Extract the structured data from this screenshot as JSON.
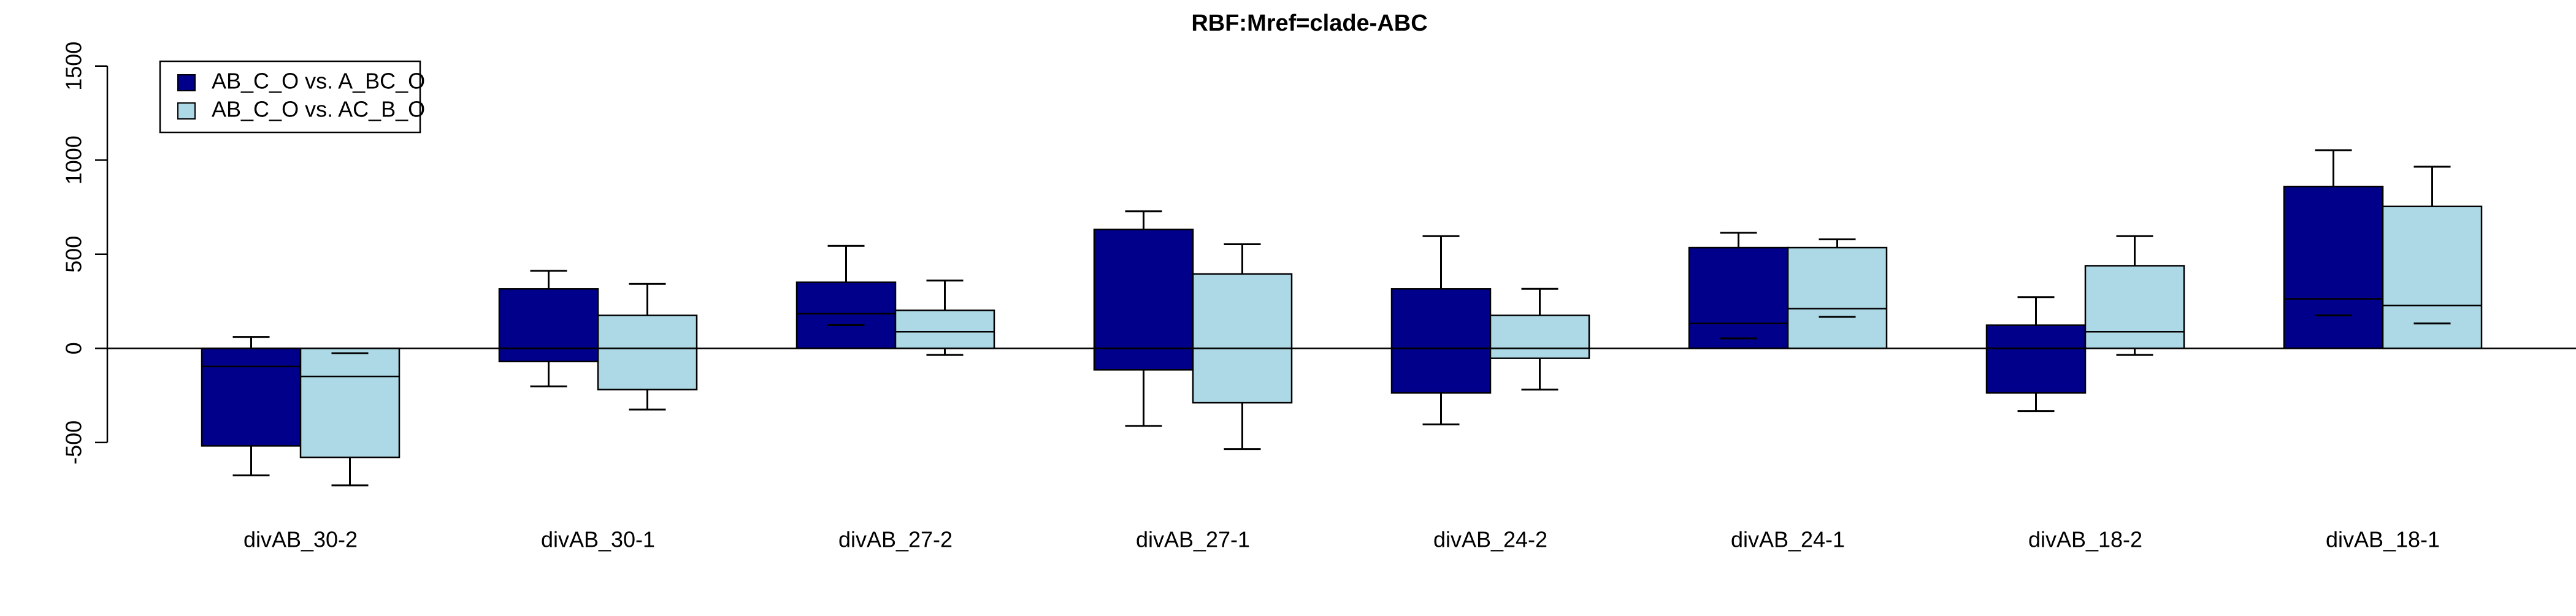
{
  "chart_data": {
    "type": "box",
    "title": "RBF:Mref=clade-ABC",
    "categories": [
      "divAB_30-2",
      "divAB_30-1",
      "divAB_27-2",
      "divAB_27-1",
      "divAB_24-2",
      "divAB_24-1",
      "divAB_18-2",
      "divAB_18-1"
    ],
    "series": [
      {
        "name": "AB_C_O vs. A_BC_O",
        "color": "#00008b",
        "whisker_low": [
          -675,
          -202,
          123,
          -412,
          -404,
          53,
          -333,
          175
        ],
        "box_low": [
          -518,
          -70,
          0,
          -114,
          -237,
          0,
          -237,
          0
        ],
        "median": [
          -96,
          0,
          184,
          0,
          0,
          132,
          0,
          263
        ],
        "box_high": [
          0,
          316,
          351,
          632,
          316,
          535,
          123,
          860
        ],
        "whisker_high": [
          61,
          412,
          544,
          728,
          596,
          614,
          272,
          1053
        ]
      },
      {
        "name": "AB_C_O vs. AC_B_O",
        "color": "#add8e6",
        "whisker_low": [
          -728,
          -325,
          -35,
          -535,
          -219,
          167,
          -35,
          132
        ],
        "box_low": [
          -579,
          -219,
          0,
          -289,
          -53,
          0,
          0,
          0
        ],
        "median": [
          -149,
          0,
          88,
          0,
          0,
          211,
          88,
          228
        ],
        "box_high": [
          0,
          175,
          202,
          395,
          175,
          535,
          439,
          754
        ],
        "whisker_high": [
          -26,
          342,
          360,
          553,
          316,
          579,
          596,
          965
        ]
      }
    ],
    "ylim": [
      -800,
      1600
    ],
    "yticks": [
      -500,
      0,
      500,
      1000,
      1500
    ],
    "reference_line": 0,
    "legend": "top-left"
  }
}
